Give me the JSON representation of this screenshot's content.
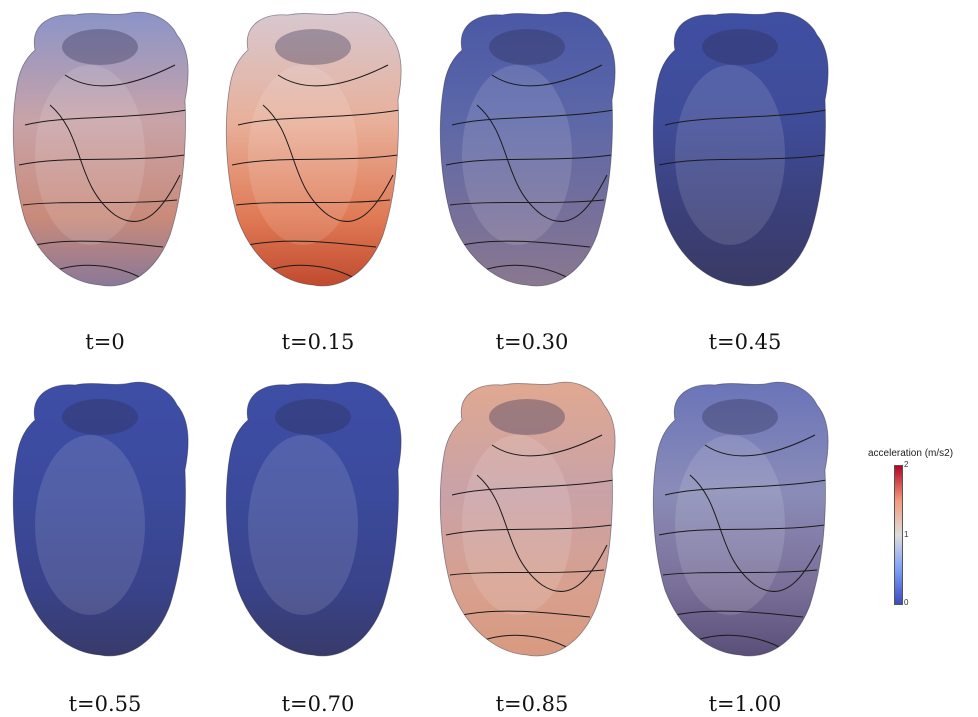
{
  "panels": [
    {
      "label": "t=0",
      "colors": {
        "top": "#8a94c8",
        "mid": "#c9a3a8",
        "low": "#c98a7a",
        "base": "#8a7898"
      }
    },
    {
      "label": "t=0.15",
      "colors": {
        "top": "#d7c8d0",
        "mid": "#e8b09a",
        "low": "#e07a55",
        "base": "#c04a2e"
      }
    },
    {
      "label": "t=0.30",
      "colors": {
        "top": "#4a58a6",
        "mid": "#5d68a8",
        "low": "#77709a",
        "base": "#8a7890"
      }
    },
    {
      "label": "t=0.45",
      "colors": {
        "top": "#3f4fa2",
        "mid": "#3f4c98",
        "low": "#3b3f78",
        "base": "#3a3a64"
      }
    },
    {
      "label": "t=0.55",
      "colors": {
        "top": "#3e4ea6",
        "mid": "#3b4a9c",
        "low": "#39438a",
        "base": "#383a6a"
      }
    },
    {
      "label": "t=0.70",
      "colors": {
        "top": "#3e4ea6",
        "mid": "#3b4a9c",
        "low": "#39438a",
        "base": "#383a6a"
      }
    },
    {
      "label": "t=0.85",
      "colors": {
        "top": "#e0a890",
        "mid": "#c9a2a8",
        "low": "#d8a08e",
        "base": "#d89a80"
      }
    },
    {
      "label": "t=1.00",
      "colors": {
        "top": "#6a74b8",
        "mid": "#8a8cb8",
        "low": "#7a6f98",
        "base": "#5a4f78"
      }
    }
  ],
  "legend": {
    "title": "acceleration (m/s2)",
    "tick_max": "2",
    "tick_mid": "1",
    "tick_min": "0",
    "colormap": [
      "#3b4cc0",
      "#7b9ff9",
      "#dddddd",
      "#f49a7b",
      "#b40426"
    ]
  }
}
